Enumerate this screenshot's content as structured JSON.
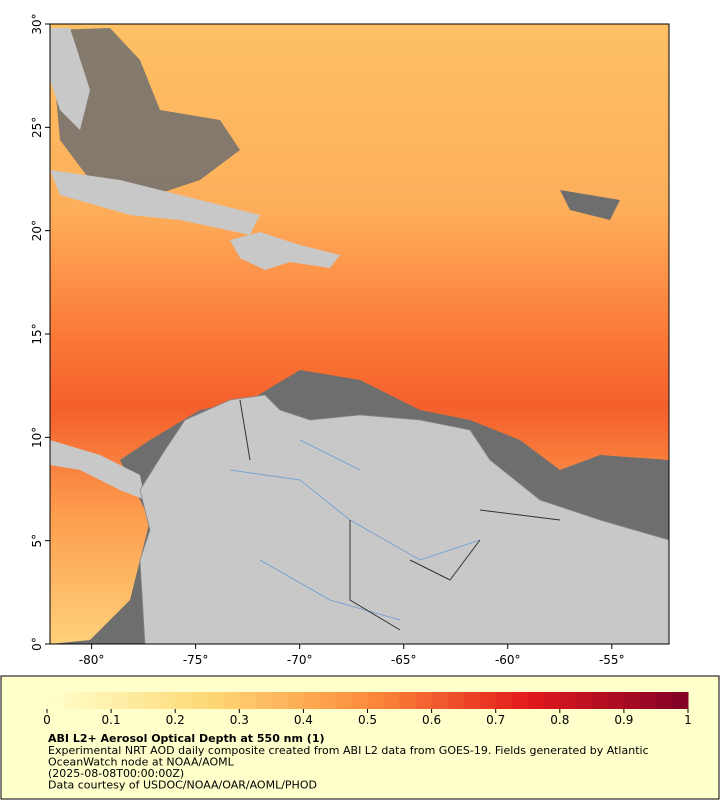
{
  "chart_data": {
    "type": "map",
    "xlim": [
      -82,
      -52.25
    ],
    "ylim": [
      0,
      30
    ],
    "xticks": [
      {
        "value": -80,
        "label": "-80°"
      },
      {
        "value": -75,
        "label": "-75°"
      },
      {
        "value": -70,
        "label": "-70°"
      },
      {
        "value": -65,
        "label": "-65°"
      },
      {
        "value": -60,
        "label": "-60°"
      },
      {
        "value": -55,
        "label": "-55°"
      }
    ],
    "yticks": [
      {
        "value": 0,
        "label": "0°"
      },
      {
        "value": 5,
        "label": "5°"
      },
      {
        "value": 10,
        "label": "10°"
      },
      {
        "value": 15,
        "label": "15°"
      },
      {
        "value": 20,
        "label": "20°"
      },
      {
        "value": 25,
        "label": "25°"
      },
      {
        "value": 30,
        "label": "30°"
      }
    ],
    "colorbar": {
      "lim": [
        0,
        1
      ],
      "ticks": [
        0,
        0.1,
        0.2,
        0.3,
        0.4,
        0.5,
        0.6,
        0.7,
        0.8,
        0.9,
        1
      ],
      "colors": [
        "#ffffcc",
        "#fed976",
        "#fd8d3c",
        "#e31a1c",
        "#800026"
      ]
    },
    "title": "ABI L2+ Aerosol Optical Depth at 550 nm (1)",
    "description": [
      "Experimental NRT AOD daily composite created from ABI L2 data from GOES-19. Fields generated by Atlantic",
      "OceanWatch node at NOAA/AOML",
      "(2025-08-08T00:00:00Z)",
      "Data courtesy of USDOC/NOAA/OAR/AOML/PHOD"
    ]
  }
}
